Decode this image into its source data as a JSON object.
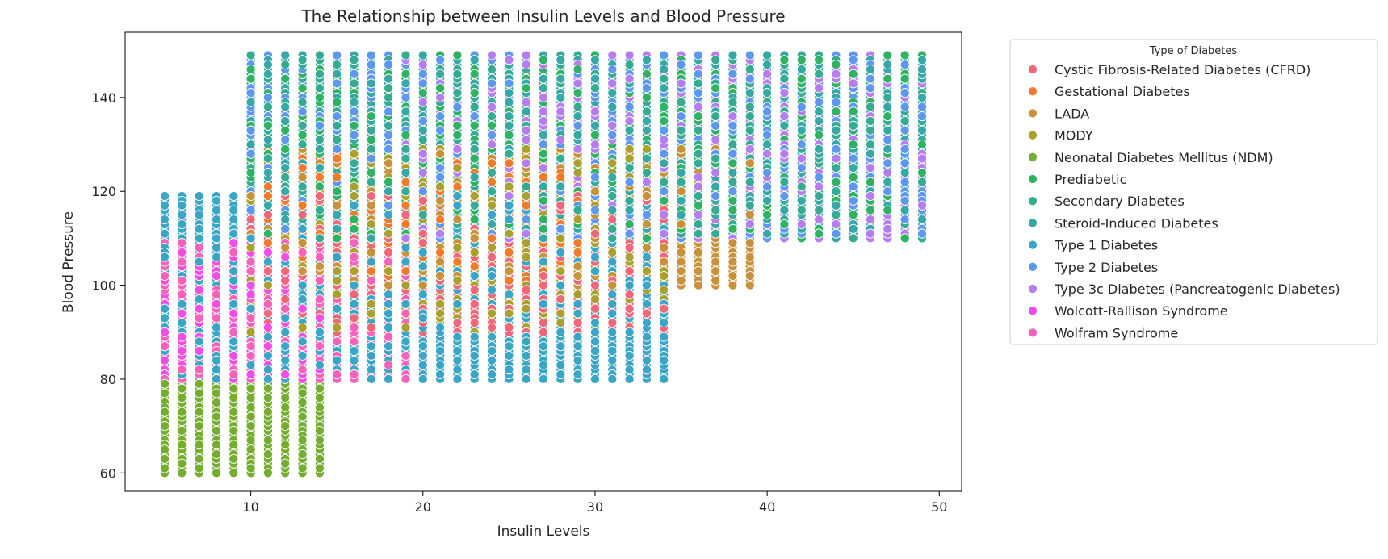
{
  "chart_data": {
    "type": "scatter",
    "title": "The Relationship between Insulin Levels and Blood Pressure",
    "xlabel": "Insulin Levels",
    "ylabel": "Blood Pressure",
    "xlim": [
      2.7,
      51.3
    ],
    "ylim": [
      56.1,
      153.9
    ],
    "xticks": [
      10,
      20,
      30,
      40,
      50
    ],
    "yticks": [
      60,
      80,
      100,
      120,
      140
    ],
    "grid": false,
    "legend": {
      "title": "Type of Diabetes",
      "placement": "upper right, outside plot"
    },
    "series": [
      {
        "name": "Cystic Fibrosis-Related Diabetes (CFRD)",
        "color": "#f0677a",
        "x_range": [
          10,
          34
        ],
        "y_range": [
          90,
          120
        ]
      },
      {
        "name": "Gestational Diabetes",
        "color": "#ef7b2b",
        "x_range": [
          10,
          29
        ],
        "y_range": [
          100,
          130
        ]
      },
      {
        "name": "LADA",
        "color": "#c8923a",
        "x_range": [
          10,
          39
        ],
        "y_range": [
          100,
          130
        ]
      },
      {
        "name": "MODY",
        "color": "#a9a02e",
        "x_range": [
          10,
          34
        ],
        "y_range": [
          90,
          130
        ]
      },
      {
        "name": "Neonatal Diabetes Mellitus (NDM)",
        "color": "#74ad2f",
        "x_range": [
          5,
          14
        ],
        "y_range": [
          60,
          80
        ]
      },
      {
        "name": "Prediabetic",
        "color": "#2fb264",
        "x_range": [
          10,
          49
        ],
        "y_range": [
          110,
          150
        ]
      },
      {
        "name": "Secondary Diabetes",
        "color": "#35ab93",
        "x_range": [
          10,
          49
        ],
        "y_range": [
          110,
          150
        ]
      },
      {
        "name": "Steroid-Induced Diabetes",
        "color": "#36a8a6",
        "x_range": [
          10,
          49
        ],
        "y_range": [
          110,
          150
        ]
      },
      {
        "name": "Type 1 Diabetes",
        "color": "#3aa5c7",
        "x_range": [
          5,
          34
        ],
        "y_range": [
          80,
          120
        ]
      },
      {
        "name": "Type 2 Diabetes",
        "color": "#5e97f0",
        "x_range": [
          10,
          49
        ],
        "y_range": [
          110,
          150
        ]
      },
      {
        "name": "Type 3c Diabetes (Pancreatogenic Diabetes)",
        "color": "#b47ef0",
        "x_range": [
          19,
          49
        ],
        "y_range": [
          110,
          150
        ]
      },
      {
        "name": "Wolcott-Rallison Syndrome",
        "color": "#f04ee6",
        "x_range": [
          5,
          14
        ],
        "y_range": [
          80,
          110
        ]
      },
      {
        "name": "Wolfram Syndrome",
        "color": "#f462b9",
        "x_range": [
          5,
          19
        ],
        "y_range": [
          80,
          110
        ]
      }
    ]
  }
}
